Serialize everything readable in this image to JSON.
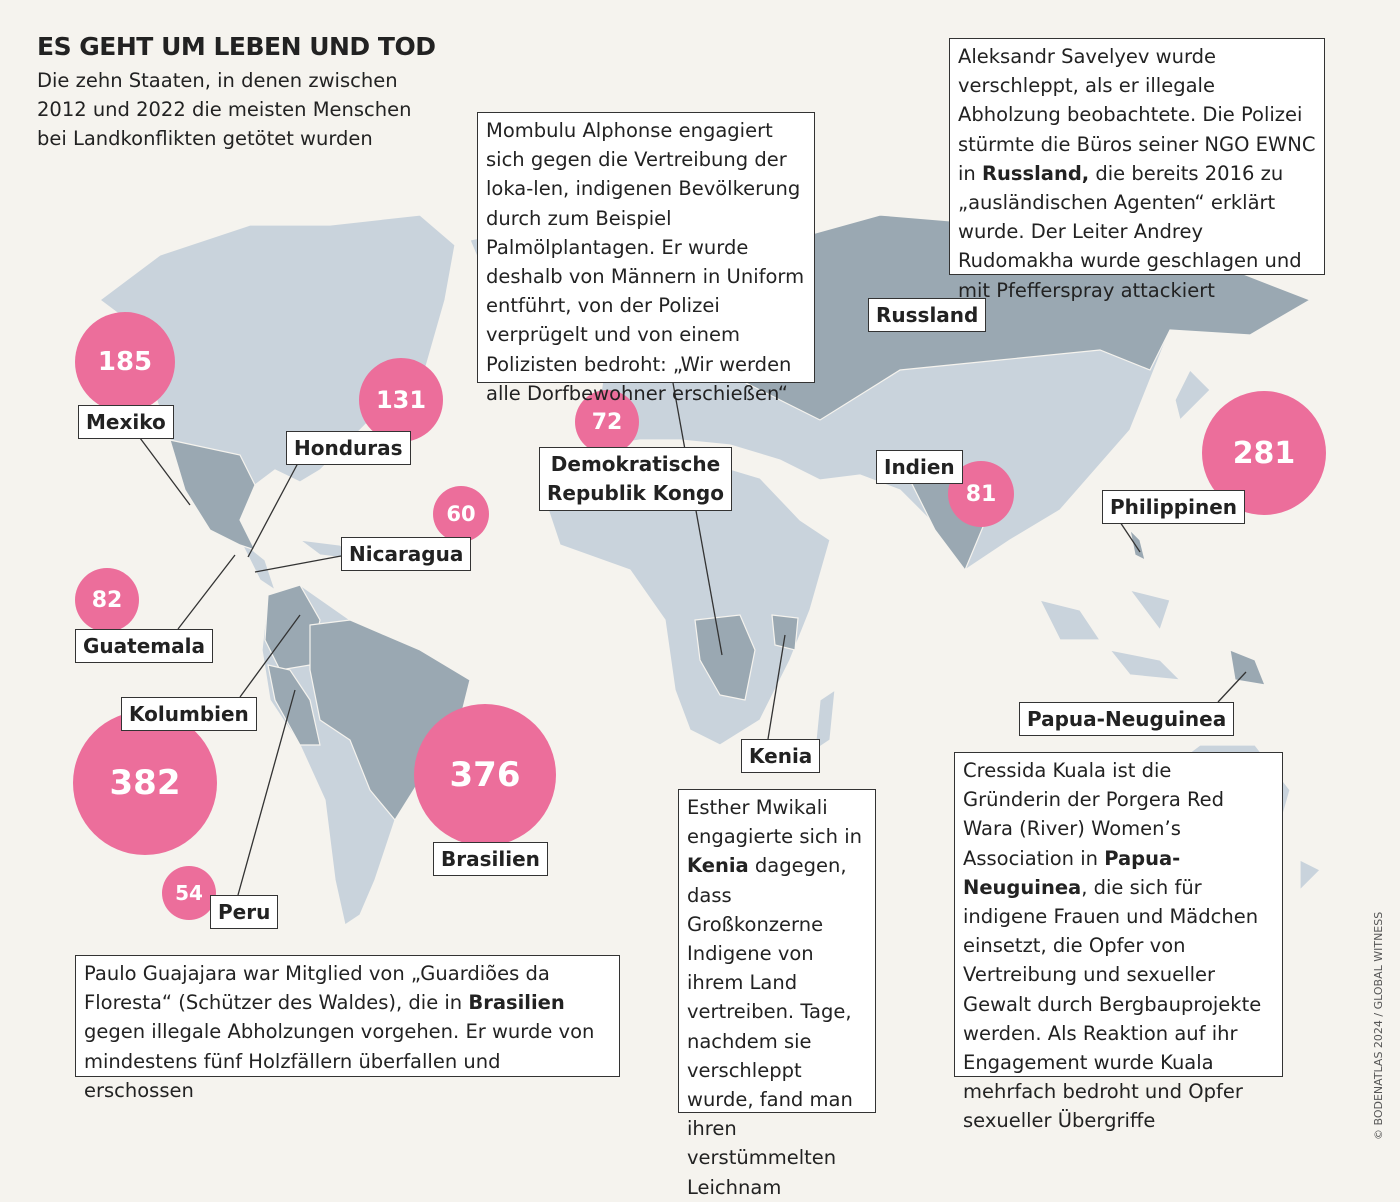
{
  "title": "ES GEHT UM LEBEN UND TOD",
  "subtitle": "Die zehn Staaten, in denen zwischen 2012 und 2022 die meisten Menschen bei Landkonflikten getötet wurden",
  "colors": {
    "background": "#f5f3ee",
    "land": "#c9d3dc",
    "highlighted_country": "#9aa8b2",
    "bubble": "#ec6e9b"
  },
  "countries": [
    {
      "name": "Mexiko",
      "killed": "185"
    },
    {
      "name": "Honduras",
      "killed": "131"
    },
    {
      "name": "Nicaragua",
      "killed": "60"
    },
    {
      "name": "Guatemala",
      "killed": "82"
    },
    {
      "name": "Kolumbien",
      "killed": "382"
    },
    {
      "name": "Brasilien",
      "killed": "376"
    },
    {
      "name": "Peru",
      "killed": "54"
    },
    {
      "name": "Demokratische Republik Kongo",
      "line1": "Demokratische",
      "line2": "Republik Kongo",
      "killed": "72"
    },
    {
      "name": "Russland"
    },
    {
      "name": "Indien",
      "killed": "81"
    },
    {
      "name": "Philippinen",
      "killed": "281"
    },
    {
      "name": "Papua-Neuguinea"
    },
    {
      "name": "Kenia"
    }
  ],
  "stories": {
    "kongo": "Mombulu Alphonse engagiert sich gegen die Vertreibung der loka-len, indigenen Bevölkerung durch zum Beispiel Palmölplantagen. Er wurde deshalb von Männern in Uniform entführt, von der Polizei verprügelt und von einem Polizisten bedroht: „Wir werden alle Dorfbewohner erschießen“",
    "russland": {
      "a": "Aleksandr Savelyev wurde verschleppt, als er illegale Abholzung beobachtete. Die Polizei stürmte die Büros seiner NGO EWNC in ",
      "b": "Russland,",
      "c": " die bereits 2016 zu „ausländischen Agenten“ erklärt wurde. Der Leiter Andrey Rudomakha wurde geschlagen und mit Pfefferspray attackiert"
    },
    "brasilien": {
      "a": "Paulo Guajajara war Mitglied von „Guardiões da Floresta“ (Schützer des Waldes), die in ",
      "b": "Brasilien",
      "c": " gegen illegale Abholzungen vorgehen. Er wurde von mindestens fünf Holzfällern überfallen und erschossen"
    },
    "kenia": {
      "a": "Esther Mwikali engagierte sich in ",
      "b": "Kenia",
      "c": " dagegen, dass Großkonzerne Indigene von ihrem Land vertreiben. Tage, nachdem sie verschleppt wurde, fand man ihren verstümmelten Leichnam"
    },
    "papua": {
      "a": "Cressida Kuala ist die Gründerin der Porgera Red Wara (River) Women’s Association in ",
      "b": "Papua-Neuguinea",
      "c": ", die sich für indigene Frauen und Mädchen einsetzt, die Opfer von Vertreibung und sexueller Gewalt durch Bergbauprojekte werden. Als Reaktion auf ihr Engagement wurde Kuala mehrfach bedroht und Opfer sexueller Übergriffe"
    }
  },
  "credit": "© BODENATLAS 2024 / GLOBAL WITNESS"
}
